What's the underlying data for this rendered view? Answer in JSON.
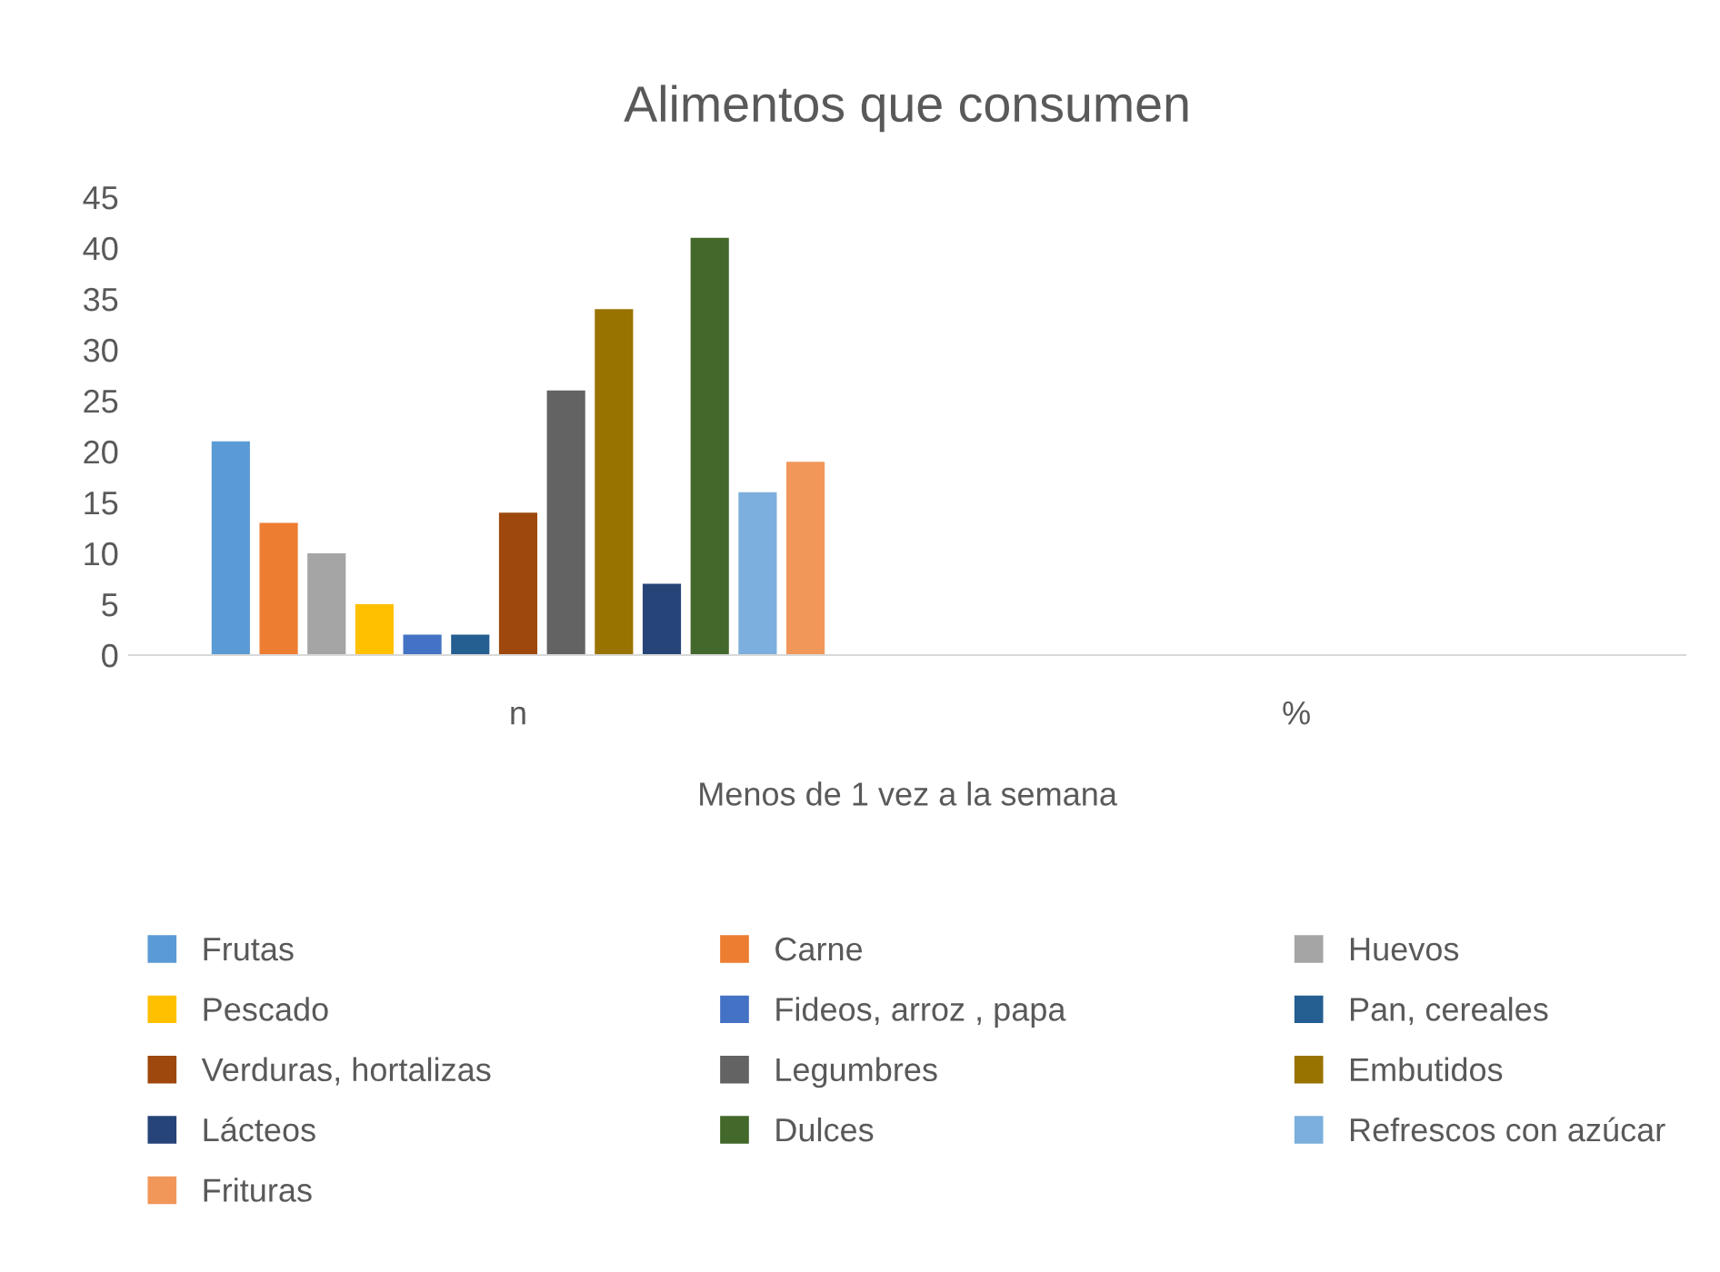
{
  "chart_data": {
    "type": "bar",
    "title": "Alimentos que consumen",
    "xlabel": "Menos de 1 vez a la semana",
    "categories": [
      "n",
      "%"
    ],
    "series": [
      {
        "name": "Frutas",
        "color": "#5b9bd5",
        "values": [
          21,
          null
        ]
      },
      {
        "name": "Carne",
        "color": "#ed7d31",
        "values": [
          13,
          null
        ]
      },
      {
        "name": "Huevos",
        "color": "#a5a5a5",
        "values": [
          10,
          null
        ]
      },
      {
        "name": "Pescado",
        "color": "#ffc000",
        "values": [
          5,
          null
        ]
      },
      {
        "name": "Fideos, arroz , papa",
        "color": "#4472c4",
        "values": [
          2,
          null
        ]
      },
      {
        "name": "Pan, cereales",
        "color": "#255e91",
        "values": [
          2,
          null
        ]
      },
      {
        "name": "Verduras, hortalizas",
        "color": "#9e480e",
        "values": [
          14,
          null
        ]
      },
      {
        "name": "Legumbres",
        "color": "#636363",
        "values": [
          26,
          null
        ]
      },
      {
        "name": "Embutidos",
        "color": "#997300",
        "values": [
          34,
          null
        ]
      },
      {
        "name": "Lácteos",
        "color": "#264478",
        "values": [
          7,
          null
        ]
      },
      {
        "name": "Dulces",
        "color": "#43682b",
        "values": [
          41,
          null
        ]
      },
      {
        "name": "Refrescos con azúcar",
        "color": "#7cafdd",
        "values": [
          16,
          null
        ]
      },
      {
        "name": "Frituras",
        "color": "#f1975a",
        "values": [
          19,
          null
        ]
      }
    ],
    "ylim": [
      0,
      45
    ],
    "yticks": [
      0,
      5,
      10,
      15,
      20,
      25,
      30,
      35,
      40,
      45
    ],
    "grid": false,
    "legend": "bottom"
  }
}
